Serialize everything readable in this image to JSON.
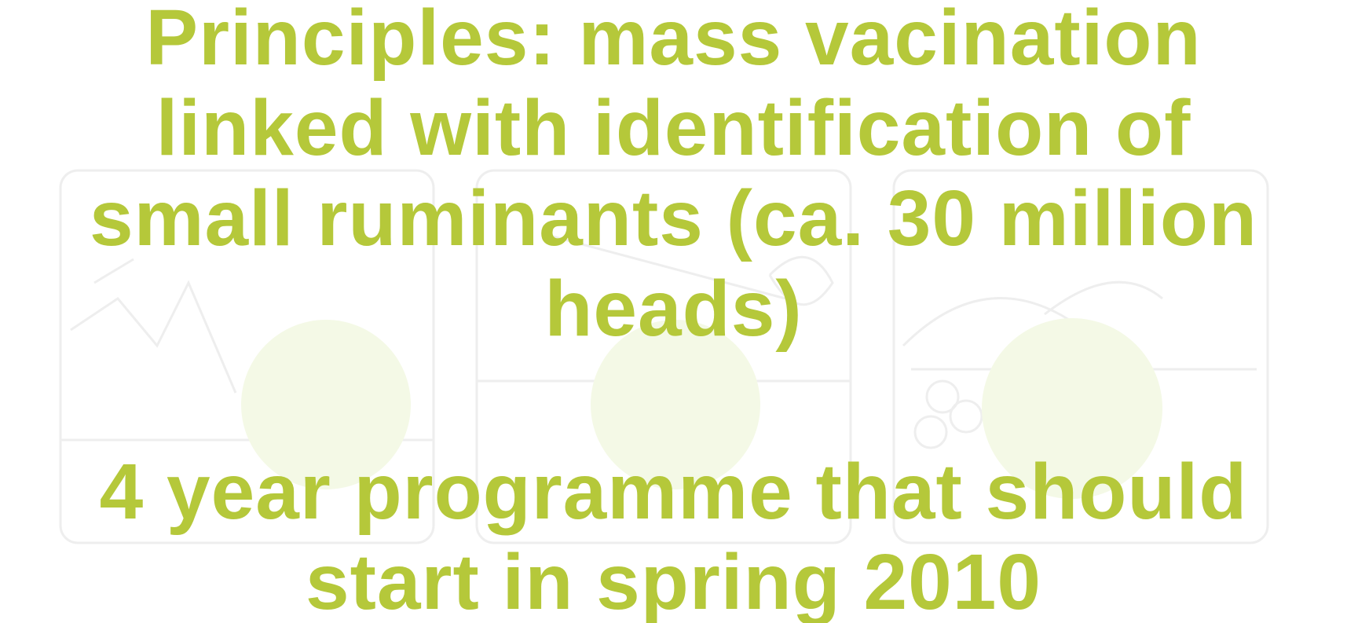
{
  "paragraphs": [
    [
      "Principles: mass vacination",
      "linked with identification of",
      "small ruminants (ca. 30 million",
      "heads)"
    ],
    [
      "4 year programme that should",
      "start in spring 2010"
    ]
  ]
}
